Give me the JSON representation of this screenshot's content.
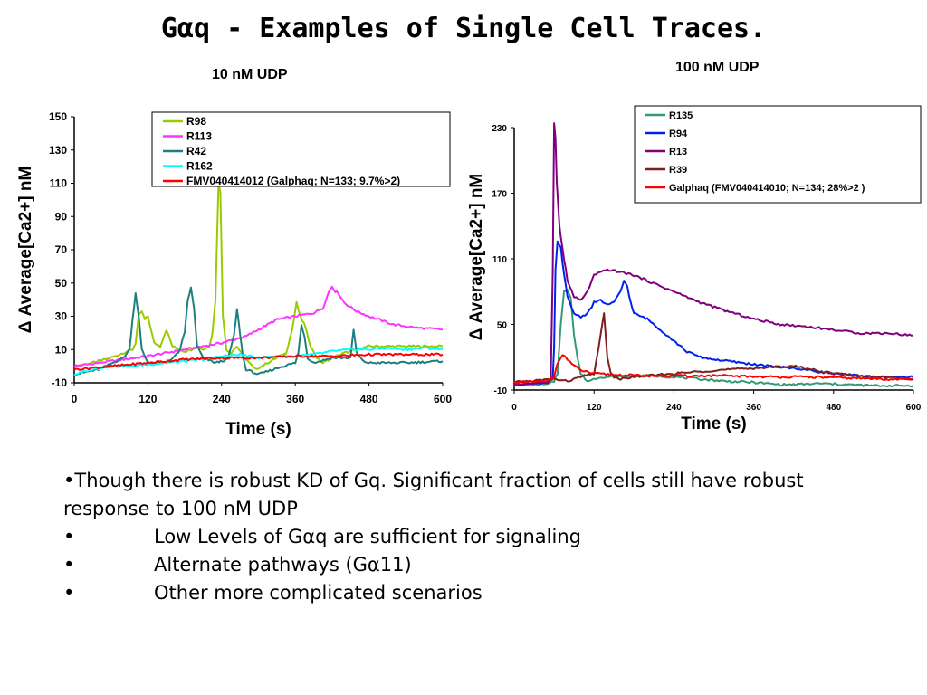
{
  "slide": {
    "title": "Gαq - Examples of Single Cell Traces.",
    "bullets": [
      {
        "marker": "•",
        "text": "Though there is robust KD of Gq.  Significant fraction of cells still have robust response to 100 nM UDP"
      },
      {
        "marker": "•",
        "text": "Low Levels of Gαq are sufficient for signaling"
      },
      {
        "marker": "•",
        "text": "Alternate pathways (Gα11)"
      },
      {
        "marker": "•",
        "text": "Other more complicated scenarios"
      }
    ]
  },
  "chart_data": [
    {
      "type": "line",
      "title": "10 nM UDP",
      "xlabel": "Time (s)",
      "ylabel": "Δ Average[Ca2+] nM",
      "xlim": [
        0,
        600
      ],
      "ylim": [
        -10,
        150
      ],
      "xticks": [
        "0",
        "120",
        "240",
        "360",
        "480",
        "600"
      ],
      "yticks": [
        "-10",
        "10",
        "30",
        "50",
        "70",
        "90",
        "110",
        "130",
        "150"
      ],
      "legend_position": "top-right",
      "series": [
        {
          "name": "R98",
          "color": "#99cc00",
          "x": [
            0,
            30,
            60,
            80,
            95,
            100,
            105,
            110,
            115,
            120,
            130,
            140,
            150,
            160,
            170,
            180,
            190,
            200,
            210,
            220,
            225,
            230,
            235,
            238,
            242,
            248,
            255,
            265,
            275,
            285,
            295,
            305,
            315,
            330,
            345,
            355,
            362,
            368,
            375,
            385,
            395,
            405,
            420,
            440,
            460,
            480,
            600
          ],
          "y": [
            0,
            2,
            5,
            8,
            10,
            14,
            30,
            33,
            28,
            30,
            14,
            12,
            22,
            12,
            10,
            9,
            10,
            12,
            10,
            12,
            20,
            40,
            110,
            105,
            30,
            10,
            8,
            12,
            6,
            2,
            -2,
            0,
            2,
            5,
            8,
            22,
            38,
            30,
            25,
            12,
            5,
            2,
            5,
            8,
            10,
            12,
            12
          ]
        },
        {
          "name": "R113",
          "color": "#ff33ff",
          "x": [
            0,
            60,
            120,
            180,
            240,
            280,
            300,
            330,
            360,
            390,
            405,
            415,
            420,
            425,
            430,
            440,
            460,
            480,
            520,
            560,
            600
          ],
          "y": [
            0,
            3,
            6,
            10,
            14,
            18,
            22,
            28,
            30,
            32,
            35,
            45,
            48,
            45,
            44,
            38,
            33,
            30,
            25,
            23,
            22
          ]
        },
        {
          "name": "R42",
          "color": "#1f7f7f",
          "x": [
            0,
            40,
            80,
            90,
            95,
            100,
            105,
            110,
            120,
            150,
            170,
            180,
            185,
            190,
            195,
            200,
            210,
            230,
            250,
            260,
            265,
            270,
            275,
            280,
            300,
            340,
            360,
            365,
            370,
            375,
            380,
            390,
            400,
            420,
            450,
            455,
            460,
            470,
            480,
            540,
            600
          ],
          "y": [
            -5,
            -2,
            5,
            10,
            28,
            44,
            30,
            10,
            2,
            2,
            8,
            20,
            40,
            47,
            35,
            12,
            5,
            2,
            4,
            18,
            34,
            20,
            5,
            -2,
            -5,
            0,
            2,
            8,
            25,
            18,
            5,
            2,
            3,
            5,
            5,
            22,
            8,
            3,
            2,
            2,
            3
          ]
        },
        {
          "name": "R162",
          "color": "#00ffff",
          "x": [
            0,
            30,
            60,
            90,
            120,
            150,
            180,
            210,
            240,
            270,
            300,
            330,
            360,
            390,
            420,
            450,
            480,
            510,
            540,
            570,
            600
          ],
          "y": [
            -5,
            -2,
            0,
            0,
            1,
            2,
            3,
            4,
            6,
            7,
            5,
            6,
            6,
            7,
            9,
            10,
            10,
            11,
            10,
            11,
            10
          ]
        },
        {
          "name": "FMV040414012 (Galphaq; N=133; 9.7%>2)",
          "color": "#ff0000",
          "x": [
            0,
            60,
            120,
            180,
            240,
            300,
            360,
            420,
            480,
            540,
            600
          ],
          "y": [
            -2,
            0,
            2,
            4,
            5,
            5,
            6,
            6,
            7,
            7,
            7
          ]
        }
      ]
    },
    {
      "type": "line",
      "title": "100 nM UDP",
      "xlabel": "Time (s)",
      "ylabel": "Δ Average[Ca2+] nM",
      "xlim": [
        0,
        600
      ],
      "ylim": [
        -10,
        230
      ],
      "xticks": [
        "0",
        "120",
        "240",
        "360",
        "480",
        "600"
      ],
      "yticks": [
        "-10",
        "50",
        "110",
        "170",
        "230"
      ],
      "legend_position": "top-right",
      "series": [
        {
          "name": "R135",
          "color": "#339977",
          "x": [
            0,
            50,
            60,
            65,
            70,
            75,
            80,
            85,
            90,
            95,
            100,
            110,
            120,
            130,
            160,
            200,
            240,
            280,
            320,
            360,
            400,
            420,
            460,
            500,
            540,
            600
          ],
          "y": [
            -5,
            -5,
            -2,
            5,
            50,
            80,
            82,
            75,
            40,
            20,
            5,
            -2,
            0,
            2,
            2,
            3,
            2,
            0,
            -2,
            -3,
            -5,
            -5,
            -4,
            -5,
            -6,
            -6
          ]
        },
        {
          "name": "R94",
          "color": "#0022ee",
          "x": [
            0,
            50,
            58,
            60,
            62,
            65,
            70,
            75,
            80,
            90,
            100,
            110,
            120,
            130,
            140,
            150,
            160,
            165,
            170,
            175,
            180,
            200,
            220,
            240,
            260,
            280,
            300,
            340,
            380,
            420,
            480,
            540,
            600
          ],
          "y": [
            -5,
            -3,
            0,
            30,
            100,
            125,
            120,
            95,
            75,
            60,
            57,
            60,
            70,
            72,
            68,
            70,
            80,
            90,
            85,
            70,
            60,
            55,
            45,
            35,
            25,
            20,
            18,
            15,
            12,
            10,
            5,
            2,
            2
          ]
        },
        {
          "name": "R13",
          "color": "#800080",
          "x": [
            0,
            50,
            55,
            58,
            60,
            62,
            64,
            66,
            68,
            70,
            75,
            80,
            90,
            100,
            110,
            120,
            140,
            160,
            180,
            200,
            240,
            280,
            320,
            360,
            400,
            440,
            480,
            520,
            560,
            600
          ],
          "y": [
            -5,
            -3,
            0,
            100,
            235,
            220,
            180,
            160,
            140,
            130,
            110,
            90,
            75,
            72,
            80,
            95,
            100,
            98,
            95,
            90,
            80,
            70,
            62,
            55,
            50,
            48,
            45,
            42,
            42,
            40
          ]
        },
        {
          "name": "R39",
          "color": "#7f1f1f",
          "x": [
            0,
            60,
            80,
            100,
            120,
            130,
            135,
            140,
            145,
            150,
            160,
            180,
            240,
            300,
            360,
            420,
            480,
            540,
            600
          ],
          "y": [
            -3,
            0,
            -2,
            2,
            5,
            40,
            60,
            20,
            5,
            2,
            0,
            2,
            5,
            8,
            10,
            12,
            5,
            2,
            0
          ]
        },
        {
          "name": "Galphaq (FMV040414010; N=134; 28%>2 )",
          "color": "#ff0000",
          "x": [
            0,
            50,
            60,
            65,
            70,
            75,
            80,
            90,
            100,
            120,
            150,
            200,
            260,
            320,
            380,
            440,
            500,
            560,
            600
          ],
          "y": [
            -3,
            -2,
            2,
            15,
            20,
            22,
            18,
            12,
            8,
            5,
            4,
            3,
            3,
            3,
            2,
            2,
            1,
            0,
            0
          ]
        }
      ]
    }
  ]
}
